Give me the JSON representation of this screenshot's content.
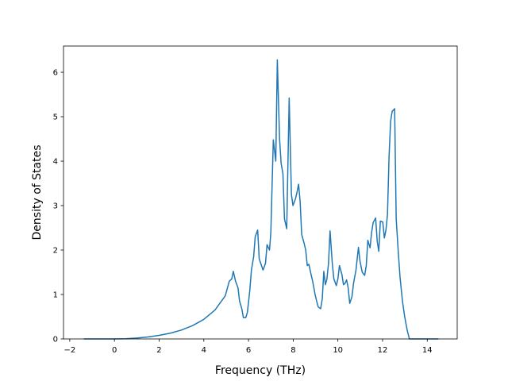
{
  "chart_data": {
    "type": "line",
    "x_label": "Frequency (THz)",
    "y_label": "Density of States",
    "x": [
      -1.37,
      0,
      0.5,
      1,
      1.5,
      2,
      2.5,
      3,
      3.5,
      4,
      4.5,
      4.96,
      5.14,
      5.25,
      5.32,
      5.42,
      5.53,
      5.6,
      5.7,
      5.77,
      5.88,
      5.95,
      6.06,
      6.13,
      6.23,
      6.3,
      6.41,
      6.48,
      6.65,
      6.76,
      6.83,
      6.94,
      7.0,
      7.11,
      7.22,
      7.29,
      7.39,
      7.46,
      7.54,
      7.61,
      7.71,
      7.82,
      7.92,
      7.99,
      8.1,
      8.17,
      8.24,
      8.31,
      8.38,
      8.49,
      8.56,
      8.63,
      8.7,
      8.8,
      8.87,
      8.98,
      9.05,
      9.12,
      9.23,
      9.3,
      9.37,
      9.44,
      9.51,
      9.58,
      9.65,
      9.75,
      9.82,
      9.93,
      10.0,
      10.07,
      10.18,
      10.25,
      10.32,
      10.39,
      10.46,
      10.53,
      10.63,
      10.7,
      10.81,
      10.92,
      10.99,
      11.09,
      11.2,
      11.27,
      11.34,
      11.44,
      11.51,
      11.58,
      11.69,
      11.76,
      11.83,
      11.9,
      12.01,
      12.08,
      12.15,
      12.22,
      12.29,
      12.36,
      12.43,
      12.54,
      12.61,
      12.71,
      12.78,
      12.89,
      12.99,
      13.1,
      13.2,
      14.5
    ],
    "values": [
      0,
      0,
      0.005,
      0.02,
      0.045,
      0.08,
      0.13,
      0.2,
      0.3,
      0.44,
      0.65,
      0.97,
      1.3,
      1.35,
      1.52,
      1.3,
      1.15,
      0.85,
      0.68,
      0.48,
      0.48,
      0.6,
      1.1,
      1.55,
      1.85,
      2.3,
      2.45,
      1.8,
      1.55,
      1.7,
      2.12,
      2.0,
      2.4,
      4.48,
      4.0,
      6.28,
      4.5,
      3.95,
      3.72,
      2.7,
      2.48,
      5.42,
      3.25,
      3.0,
      3.15,
      3.3,
      3.48,
      3.1,
      2.35,
      2.15,
      2.0,
      1.65,
      1.68,
      1.45,
      1.3,
      1.0,
      0.85,
      0.72,
      0.68,
      0.9,
      1.52,
      1.22,
      1.35,
      1.7,
      2.43,
      1.7,
      1.35,
      1.2,
      1.35,
      1.65,
      1.45,
      1.22,
      1.25,
      1.33,
      1.15,
      0.8,
      0.95,
      1.25,
      1.55,
      2.06,
      1.75,
      1.5,
      1.43,
      1.65,
      2.22,
      2.05,
      2.4,
      2.62,
      2.72,
      2.2,
      1.97,
      2.65,
      2.63,
      2.27,
      2.45,
      2.8,
      4.1,
      4.9,
      5.12,
      5.18,
      2.7,
      1.9,
      1.4,
      0.85,
      0.5,
      0.2,
      0,
      0
    ],
    "color": "#1f77b4",
    "xlim": [
      -2.28,
      15.34
    ],
    "ylim": [
      0,
      6.59
    ],
    "xticks": [
      {
        "value": -2,
        "label": "−2"
      },
      0,
      2,
      4,
      6,
      8,
      10,
      12,
      14
    ],
    "yticks": [
      0,
      1,
      2,
      3,
      4,
      5,
      6
    ]
  }
}
